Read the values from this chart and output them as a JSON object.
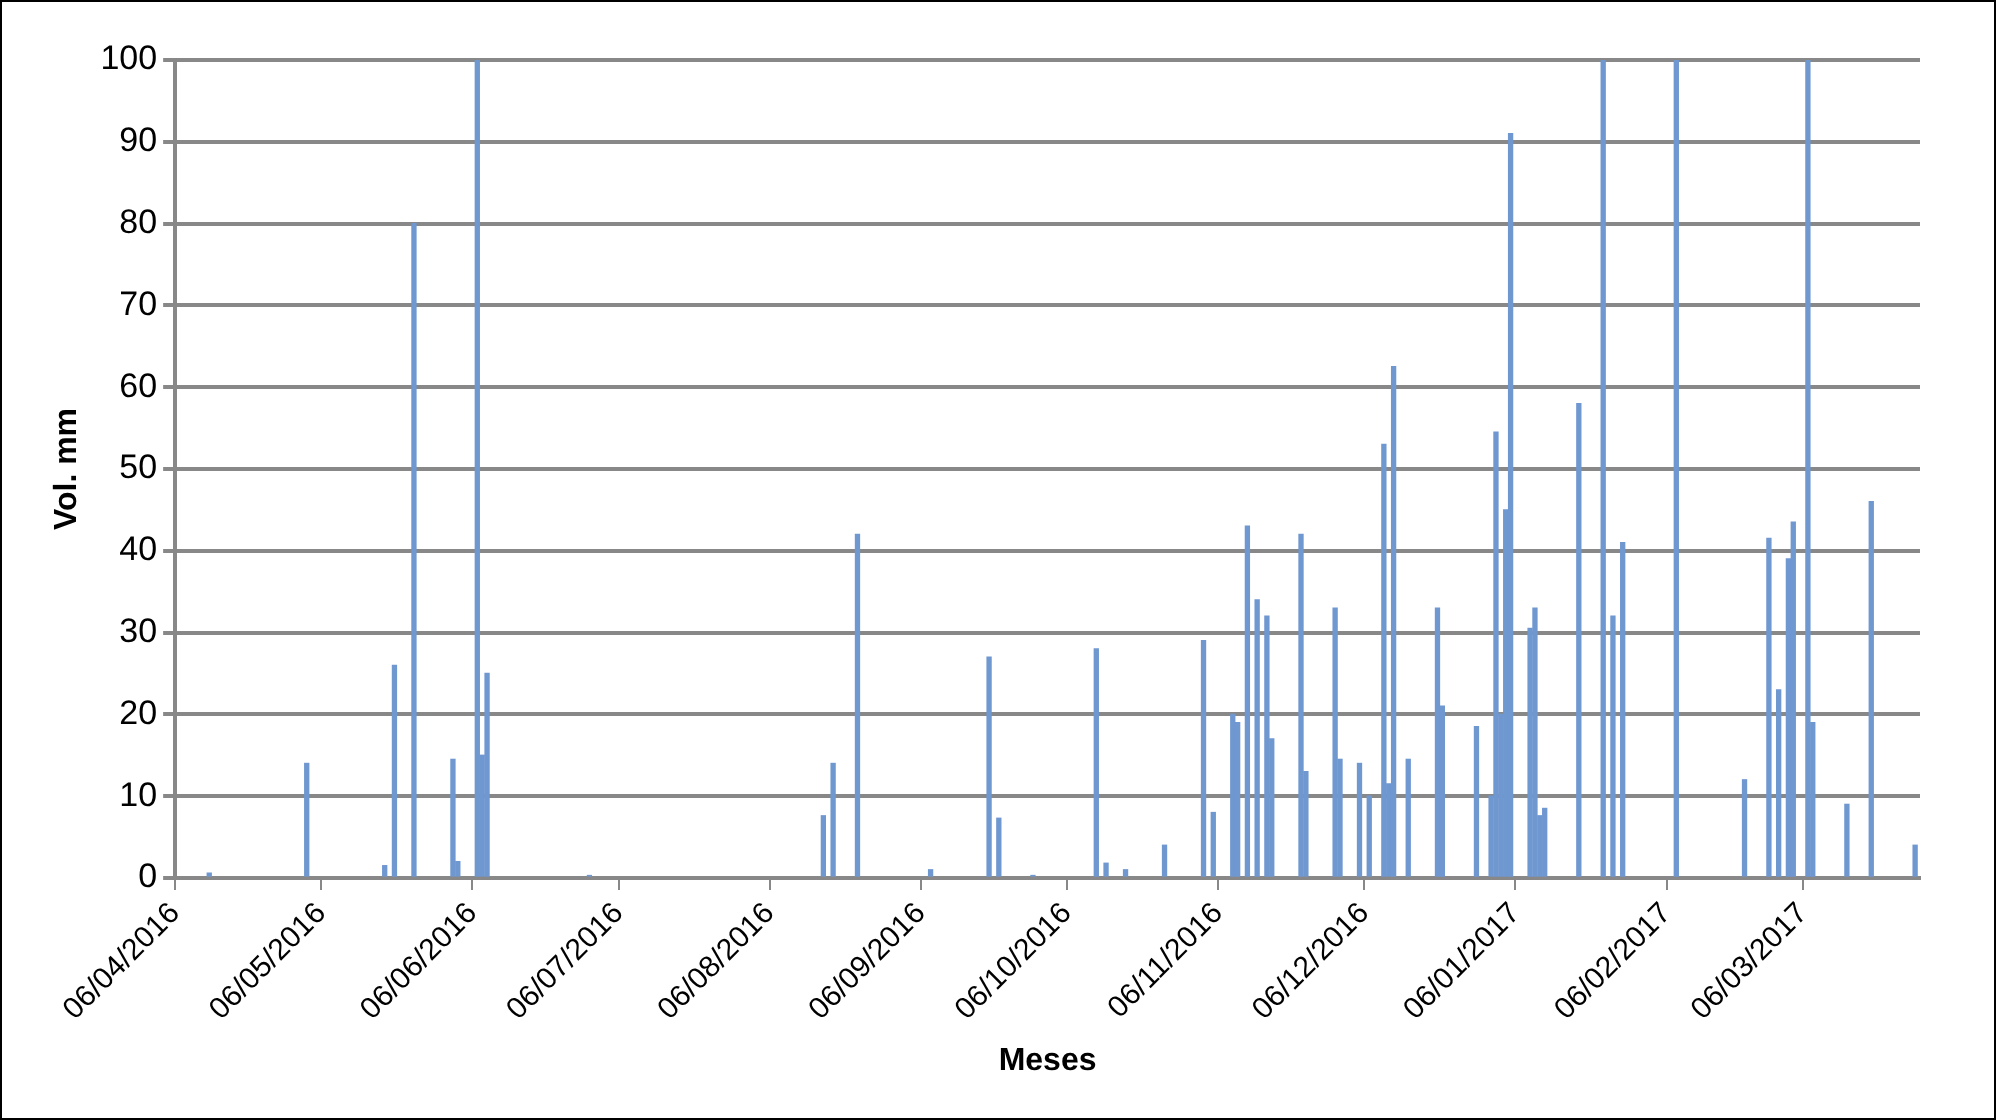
{
  "chart_data": {
    "type": "bar",
    "xlabel": "Meses",
    "ylabel": "Vol. mm",
    "x": [
      "2016-04-13",
      "2016-05-03",
      "2016-05-19",
      "2016-05-21",
      "2016-05-25",
      "2016-06-02",
      "2016-06-03",
      "2016-06-07",
      "2016-06-08",
      "2016-06-09",
      "2016-06-30",
      "2016-08-17",
      "2016-08-19",
      "2016-08-24",
      "2016-09-08",
      "2016-09-20",
      "2016-09-22",
      "2016-09-29",
      "2016-10-12",
      "2016-10-14",
      "2016-10-18",
      "2016-10-26",
      "2016-11-03",
      "2016-11-05",
      "2016-11-09",
      "2016-11-10",
      "2016-11-12",
      "2016-11-14",
      "2016-11-16",
      "2016-11-17",
      "2016-11-23",
      "2016-11-24",
      "2016-11-30",
      "2016-12-01",
      "2016-12-05",
      "2016-12-07",
      "2016-12-10",
      "2016-12-11",
      "2016-12-12",
      "2016-12-15",
      "2016-12-21",
      "2016-12-22",
      "2016-12-29",
      "2017-01-01",
      "2017-01-02",
      "2017-01-03",
      "2017-01-04",
      "2017-01-05",
      "2017-01-09",
      "2017-01-10",
      "2017-01-11",
      "2017-01-12",
      "2017-01-19",
      "2017-01-24",
      "2017-01-26",
      "2017-01-28",
      "2017-02-08",
      "2017-02-22",
      "2017-02-27",
      "2017-03-01",
      "2017-03-03",
      "2017-03-04",
      "2017-03-07",
      "2017-03-08",
      "2017-03-15",
      "2017-03-20",
      "2017-03-29"
    ],
    "values": [
      0.6,
      14,
      1.5,
      26,
      80,
      14.5,
      2,
      100,
      15,
      25,
      0.3,
      7.6,
      14,
      42,
      1,
      27,
      7.3,
      0.3,
      28,
      1.8,
      1,
      4,
      29,
      8,
      20,
      19,
      43,
      34,
      32,
      17,
      42,
      13,
      33,
      14.5,
      14,
      10,
      53,
      11.5,
      62.5,
      14.5,
      33,
      21,
      18.5,
      10,
      54.5,
      20,
      45,
      91,
      30.5,
      33,
      7.6,
      8.5,
      58,
      100,
      32,
      41,
      100,
      12,
      41.5,
      23,
      39,
      43.5,
      100,
      19,
      9,
      46,
      4
    ],
    "color": "#6f97d0",
    "xlim": [
      "2016-04-06",
      "2017-03-30"
    ],
    "xticks": [
      {
        "value": "2016-04-06",
        "label": "06/04/2016"
      },
      {
        "value": "2016-05-06",
        "label": "06/05/2016"
      },
      {
        "value": "2016-06-06",
        "label": "06/06/2016"
      },
      {
        "value": "2016-07-06",
        "label": "06/07/2016"
      },
      {
        "value": "2016-08-06",
        "label": "06/08/2016"
      },
      {
        "value": "2016-09-06",
        "label": "06/09/2016"
      },
      {
        "value": "2016-10-06",
        "label": "06/10/2016"
      },
      {
        "value": "2016-11-06",
        "label": "06/11/2016"
      },
      {
        "value": "2016-12-06",
        "label": "06/12/2016"
      },
      {
        "value": "2017-01-06",
        "label": "06/01/2017"
      },
      {
        "value": "2017-02-06",
        "label": "06/02/2017"
      },
      {
        "value": "2017-03-06",
        "label": "06/03/2017"
      }
    ],
    "ylim": [
      0,
      100
    ],
    "yticks": [
      0,
      10,
      20,
      30,
      40,
      50,
      60,
      70,
      80,
      90,
      100
    ],
    "grid": "y",
    "legend": false
  }
}
